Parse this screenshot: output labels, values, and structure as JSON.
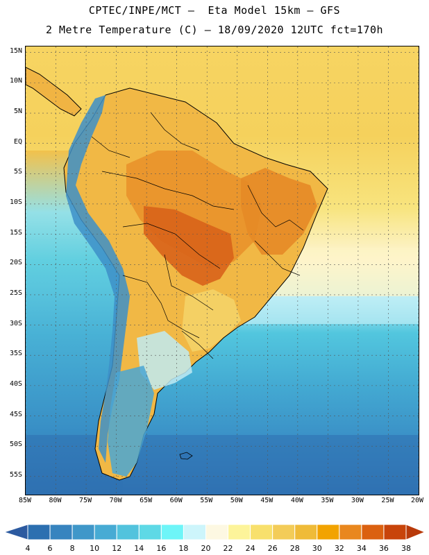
{
  "header": {
    "line1": "CPTEC/INPE/MCT –  Eta Model 15km – GFS",
    "line2": "2 Metre Temperature (C) – 18/09/2020 12UTC fct=170h"
  },
  "map": {
    "lon_range": [
      -85,
      -20
    ],
    "lat_range": [
      -58,
      16
    ],
    "lat_ticks": [
      {
        "value": 15,
        "label": "15N"
      },
      {
        "value": 10,
        "label": "10N"
      },
      {
        "value": 5,
        "label": "5N"
      },
      {
        "value": 0,
        "label": "EQ"
      },
      {
        "value": -5,
        "label": "5S"
      },
      {
        "value": -10,
        "label": "10S"
      },
      {
        "value": -15,
        "label": "15S"
      },
      {
        "value": -20,
        "label": "20S"
      },
      {
        "value": -25,
        "label": "25S"
      },
      {
        "value": -30,
        "label": "30S"
      },
      {
        "value": -35,
        "label": "35S"
      },
      {
        "value": -40,
        "label": "40S"
      },
      {
        "value": -45,
        "label": "45S"
      },
      {
        "value": -50,
        "label": "50S"
      },
      {
        "value": -55,
        "label": "55S"
      }
    ],
    "lon_ticks": [
      {
        "value": -85,
        "label": "85W"
      },
      {
        "value": -80,
        "label": "80W"
      },
      {
        "value": -75,
        "label": "75W"
      },
      {
        "value": -70,
        "label": "70W"
      },
      {
        "value": -65,
        "label": "65W"
      },
      {
        "value": -60,
        "label": "60W"
      },
      {
        "value": -55,
        "label": "55W"
      },
      {
        "value": -50,
        "label": "50W"
      },
      {
        "value": -45,
        "label": "45W"
      },
      {
        "value": -40,
        "label": "40W"
      },
      {
        "value": -35,
        "label": "35W"
      },
      {
        "value": -30,
        "label": "30W"
      },
      {
        "value": -25,
        "label": "25W"
      },
      {
        "value": -20,
        "label": "20W"
      }
    ],
    "grid": true
  },
  "colorbar": {
    "labels": [
      "4",
      "6",
      "8",
      "10",
      "12",
      "14",
      "16",
      "18",
      "20",
      "22",
      "24",
      "26",
      "28",
      "30",
      "32",
      "34",
      "36",
      "38"
    ],
    "colors": [
      "#2c6fb0",
      "#3784bf",
      "#3f97c9",
      "#47abd4",
      "#52c3dd",
      "#5ed9e6",
      "#6ef5f8",
      "#cdf5fb",
      "#fdf8e2",
      "#fdf49a",
      "#f8e06c",
      "#f3cc58",
      "#efbb38",
      "#f2a300",
      "#e9871e",
      "#db6110",
      "#c8440a"
    ],
    "low_color": "#2c5aa0",
    "high_color": "#b83a0a"
  }
}
